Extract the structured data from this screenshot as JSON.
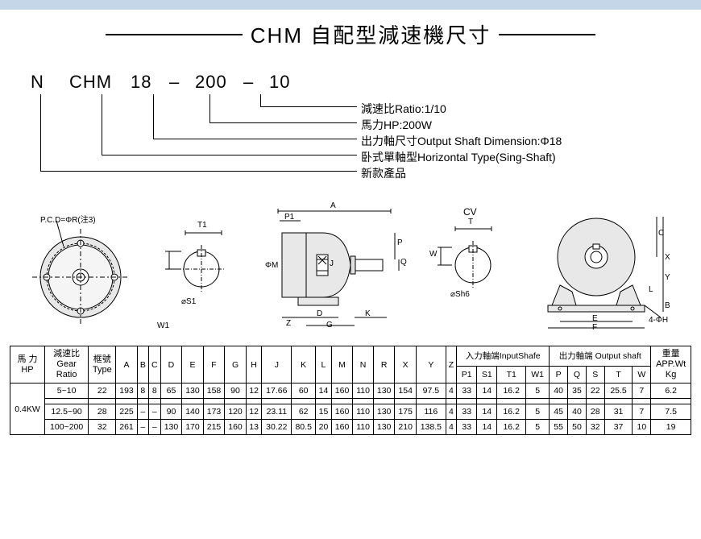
{
  "title": "CHM 自配型減速機尺寸",
  "code_parts": [
    "N",
    "CHM",
    "18",
    "–",
    "200",
    "–",
    "10"
  ],
  "decoded": [
    "減速比Ratio:1/10",
    "馬力HP:200W",
    "出力軸尺寸Output Shaft Dimension:Φ18",
    "卧式單軸型Horizontal Type(Sing-Shaft)",
    "新款產品"
  ],
  "diagram_labels": {
    "d1": "P.C.D=ΦR(注3)",
    "d2_s1": "⌀S1",
    "d2_t1": "T1",
    "d2_w1": "W1",
    "d3_a": "A",
    "d3_p1": "P1",
    "d3_m": "ΦM",
    "d3_j": "J",
    "d3_p": "P",
    "d3_q": "Q",
    "d3_z": "Z",
    "d3_d": "D",
    "d3_g": "G",
    "d3_k": "K",
    "cv": "CV",
    "d4_t": "T",
    "d4_w": "W",
    "d4_sh6": "⌀Sh6",
    "d5_c": "C",
    "d5_x": "X",
    "d5_y": "Y",
    "d5_l": "L",
    "d5_b": "B",
    "d5_e": "E",
    "d5_f": "F",
    "d5_h": "4-ΦH"
  },
  "table": {
    "headers": {
      "hp": "馬 力\nHP",
      "ratio": "減速比\nGear\nRatio",
      "type": "框號\nType",
      "cols": [
        "A",
        "B",
        "C",
        "D",
        "E",
        "F",
        "G",
        "H",
        "J",
        "K",
        "L",
        "M",
        "N",
        "R",
        "X",
        "Y",
        "Z"
      ],
      "input_group": "入力軸端InputShafe",
      "output_group": "出力軸端 Output shaft",
      "input_cols": [
        "P1",
        "S1",
        "T1",
        "W1"
      ],
      "output_cols": [
        "P",
        "Q",
        "S",
        "T",
        "W"
      ],
      "wt": "重量\nAPP.Wt\nKg"
    },
    "hp_value": "0.4KW",
    "rows": [
      {
        "ratio": "5~10",
        "type": "22",
        "v": [
          "193",
          "8",
          "8",
          "65",
          "130",
          "158",
          "90",
          "12",
          "17.66",
          "60",
          "14",
          "160",
          "110",
          "130",
          "154",
          "97.5",
          "4",
          "33",
          "14",
          "16.2",
          "5",
          "40",
          "35",
          "22",
          "25.5",
          "7",
          "6.2"
        ]
      },
      {
        "ratio": "",
        "type": "",
        "v": [
          "",
          "",
          "",
          "",
          "",
          "",
          "",
          "",
          "",
          "",
          "",
          "",
          "",
          "",
          "",
          "",
          "",
          "",
          "",
          "",
          "",
          "",
          "",
          "",
          "",
          "",
          ""
        ]
      },
      {
        "ratio": "12.5~90",
        "type": "28",
        "v": [
          "225",
          "–",
          "–",
          "90",
          "140",
          "173",
          "120",
          "12",
          "23.11",
          "62",
          "15",
          "160",
          "110",
          "130",
          "175",
          "116",
          "4",
          "33",
          "14",
          "16.2",
          "5",
          "45",
          "40",
          "28",
          "31",
          "7",
          "7.5"
        ]
      },
      {
        "ratio": "100~200",
        "type": "32",
        "v": [
          "261",
          "–",
          "–",
          "130",
          "170",
          "215",
          "160",
          "13",
          "30.22",
          "80.5",
          "20",
          "160",
          "110",
          "130",
          "210",
          "138.5",
          "4",
          "33",
          "14",
          "16.2",
          "5",
          "55",
          "50",
          "32",
          "37",
          "10",
          "19"
        ]
      }
    ]
  },
  "colors": {
    "topbar": "#c5d6e8",
    "line": "#000000",
    "text": "#000000"
  }
}
